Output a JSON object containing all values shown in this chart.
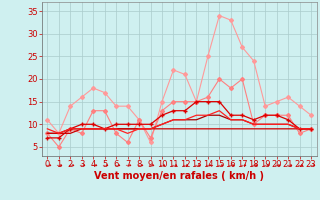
{
  "title": "",
  "xlabel": "Vent moyen/en rafales ( km/h )",
  "background_color": "#cff0f0",
  "grid_color": "#aacccc",
  "xlim": [
    -0.5,
    23.5
  ],
  "ylim": [
    3,
    37
  ],
  "yticks": [
    5,
    10,
    15,
    20,
    25,
    30,
    35
  ],
  "xticks": [
    0,
    1,
    2,
    3,
    4,
    5,
    6,
    7,
    8,
    9,
    10,
    11,
    12,
    13,
    14,
    15,
    16,
    17,
    18,
    19,
    20,
    21,
    22,
    23
  ],
  "series": [
    {
      "color": "#ff9999",
      "marker": "D",
      "markersize": 2.0,
      "linewidth": 0.8,
      "data": [
        11,
        8,
        14,
        16,
        18,
        17,
        14,
        14,
        11,
        6,
        15,
        22,
        21,
        15,
        25,
        34,
        33,
        27,
        24,
        14,
        15,
        16,
        14,
        12
      ]
    },
    {
      "color": "#ff8080",
      "marker": "D",
      "markersize": 2.0,
      "linewidth": 0.8,
      "data": [
        8,
        5,
        9,
        8,
        13,
        13,
        8,
        6,
        11,
        7,
        13,
        15,
        15,
        15,
        16,
        20,
        18,
        20,
        10,
        12,
        12,
        12,
        8,
        9
      ]
    },
    {
      "color": "#dd0000",
      "marker": "+",
      "markersize": 3.5,
      "linewidth": 0.9,
      "data": [
        7,
        7,
        9,
        10,
        10,
        9,
        10,
        10,
        10,
        10,
        12,
        13,
        13,
        15,
        15,
        15,
        12,
        12,
        11,
        12,
        12,
        11,
        9,
        9
      ]
    },
    {
      "color": "#aa0000",
      "marker": null,
      "markersize": 0,
      "linewidth": 0.9,
      "data": [
        8,
        8,
        9,
        9,
        9,
        9,
        9,
        9,
        9,
        9,
        10,
        11,
        11,
        11,
        12,
        12,
        11,
        11,
        10,
        10,
        10,
        10,
        9,
        9
      ]
    },
    {
      "color": "#cc0000",
      "marker": null,
      "markersize": 0,
      "linewidth": 0.9,
      "data": [
        8,
        8,
        8,
        9,
        9,
        9,
        9,
        9,
        9,
        9,
        9,
        9,
        9,
        9,
        9,
        9,
        9,
        9,
        9,
        9,
        9,
        9,
        9,
        9
      ]
    },
    {
      "color": "#ff2222",
      "marker": null,
      "markersize": 0,
      "linewidth": 0.9,
      "data": [
        9,
        8,
        9,
        9,
        9,
        9,
        9,
        8,
        9,
        9,
        10,
        11,
        11,
        12,
        12,
        13,
        11,
        11,
        10,
        10,
        10,
        10,
        9,
        9
      ]
    }
  ],
  "xlabel_color": "#cc0000",
  "xlabel_fontsize": 7,
  "tick_color": "#cc0000",
  "tick_fontsize": 6
}
